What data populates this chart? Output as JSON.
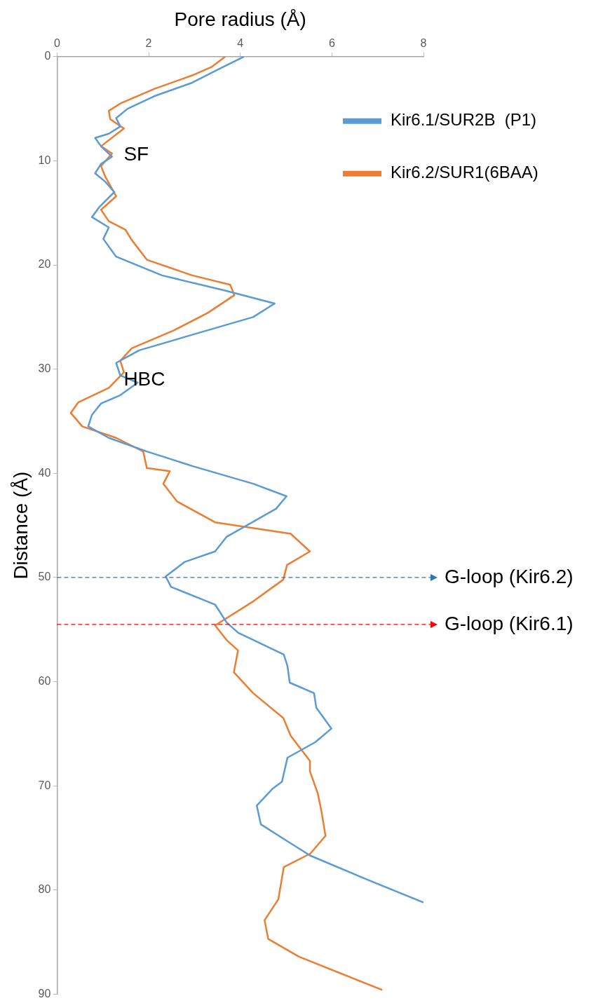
{
  "chart_data": {
    "type": "line",
    "xlabel": "Pore radius (Å)",
    "ylabel": "Distance (Å)",
    "xlim": [
      0,
      8
    ],
    "xticks": [
      0,
      2,
      4,
      6,
      8
    ],
    "ylim": [
      90,
      0
    ],
    "yticks": [
      0,
      10,
      20,
      30,
      40,
      50,
      60,
      70,
      80,
      90
    ],
    "grid": false,
    "legend": "top right",
    "marker": "none",
    "line_style": "solid",
    "series": [
      {
        "name": "Kir6.1/SUR2B  (P1)",
        "color": "#5b9bd5",
        "x": [
          4.08,
          3.53,
          2.95,
          2.12,
          1.54,
          1.29,
          1.38,
          1.13,
          0.83,
          0.96,
          1.2,
          0.96,
          0.83,
          1.05,
          1.25,
          0.93,
          0.76,
          1.13,
          1.01,
          1.29,
          2.29,
          3.62,
          4.75,
          4.28,
          2.95,
          1.79,
          1.29,
          1.38,
          1.76,
          1.38,
          0.96,
          0.76,
          0.68,
          1.13,
          1.96,
          2.95,
          4.28,
          5.01,
          4.78,
          3.7,
          3.45,
          2.79,
          2.37,
          2.49,
          3.45,
          3.7,
          3.95,
          4.95,
          5.03,
          5.08,
          5.61,
          5.66,
          5.99,
          5.64,
          5.03,
          4.91,
          4.7,
          4.36,
          4.45,
          4.95,
          5.53,
          6.77,
          8.0
        ],
        "values": [
          0,
          1.2,
          2.5,
          3.8,
          5.0,
          5.9,
          6.7,
          7.4,
          7.8,
          8.6,
          9.6,
          10.3,
          11.2,
          12.0,
          13.0,
          14.4,
          15.4,
          16.4,
          17.5,
          19.2,
          21.0,
          22.4,
          23.7,
          25.0,
          26.7,
          28.2,
          29.4,
          30.6,
          31.3,
          32.5,
          33.3,
          34.4,
          35.5,
          36.6,
          37.9,
          39.3,
          41.0,
          42.2,
          43.4,
          46.1,
          47.5,
          48.5,
          49.9,
          50.9,
          52.6,
          54.3,
          55.3,
          57.4,
          58.5,
          60.1,
          61.1,
          62.5,
          64.5,
          65.8,
          67.3,
          69.6,
          70.3,
          71.9,
          73.7,
          75.1,
          76.7,
          79.0,
          81.2
        ]
      },
      {
        "name": "Kir6.2/SUR1(6BAA)",
        "color": "#ed7d31",
        "x": [
          3.67,
          3.37,
          2.95,
          2.12,
          1.38,
          1.13,
          1.16,
          1.46,
          0.96,
          1.2,
          0.96,
          1.05,
          1.29,
          0.96,
          1.13,
          1.49,
          1.63,
          1.96,
          2.95,
          3.78,
          3.87,
          3.29,
          2.54,
          1.63,
          1.38,
          1.46,
          1.13,
          0.46,
          0.3,
          0.55,
          1.29,
          1.88,
          1.96,
          2.46,
          2.32,
          2.62,
          3.45,
          5.1,
          5.52,
          5.02,
          4.94,
          4.28,
          3.45,
          3.7,
          3.95,
          3.86,
          4.28,
          4.94,
          5.1,
          5.52,
          5.52,
          5.69,
          5.77,
          5.86,
          5.53,
          4.95,
          4.83,
          4.53,
          4.61,
          5.28,
          7.1
        ],
        "values": [
          0,
          1.0,
          1.8,
          3.1,
          4.5,
          5.2,
          6.0,
          6.9,
          8.6,
          9.3,
          10.5,
          11.5,
          13.4,
          14.7,
          15.8,
          16.6,
          17.6,
          19.5,
          21.0,
          21.9,
          22.9,
          24.6,
          26.3,
          28.0,
          29.2,
          30.3,
          31.8,
          33.2,
          34.2,
          35.5,
          36.6,
          37.9,
          39.5,
          39.8,
          41.0,
          42.7,
          44.7,
          45.8,
          47.5,
          48.8,
          50.2,
          52.3,
          54.6,
          56.0,
          57.0,
          59.1,
          61.1,
          63.5,
          65.2,
          67.6,
          68.6,
          70.7,
          72.4,
          74.8,
          76.5,
          77.8,
          80.9,
          82.9,
          84.7,
          86.4,
          89.6
        ]
      }
    ],
    "ref_lines": [
      {
        "axis": "y",
        "value": 50,
        "label": "G-loop (Kir6.2)",
        "color": "#2e75b6",
        "line_style": "dashed"
      },
      {
        "axis": "y",
        "value": 54.5,
        "label": "G-loop (Kir6.1)",
        "color": "#ff0000",
        "line_style": "dashed"
      }
    ],
    "annotations": [
      "SF",
      "HBC"
    ]
  }
}
